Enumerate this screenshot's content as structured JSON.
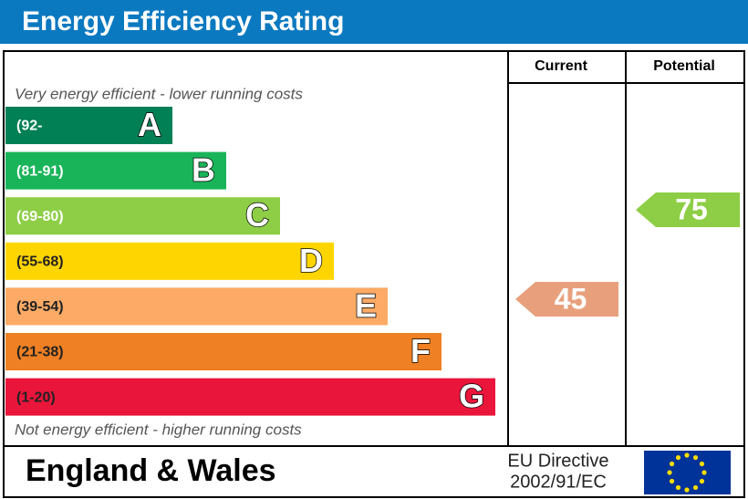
{
  "header": {
    "title": "Energy Efficiency Rating"
  },
  "columns": [
    "Current",
    "Potential"
  ],
  "top_note": "Very energy efficient - lower running costs",
  "bottom_note": "Not energy efficient - higher running costs",
  "bands": [
    {
      "range": "(92-",
      "letter": "A",
      "color": "#008054"
    },
    {
      "range": "(81-91)",
      "letter": "B",
      "color": "#19b459"
    },
    {
      "range": "(69-80)",
      "letter": "C",
      "color": "#8dce46"
    },
    {
      "range": "(55-68)",
      "letter": "D",
      "color": "#ffd500"
    },
    {
      "range": "(39-54)",
      "letter": "E",
      "color": "#fcaa65"
    },
    {
      "range": "(21-38)",
      "letter": "F",
      "color": "#ef8023"
    },
    {
      "range": "(1-20)",
      "letter": "G",
      "color": "#e9153b"
    }
  ],
  "current": {
    "value": 45,
    "color": "#e8a07c"
  },
  "potential": {
    "value": 75,
    "color": "#8dce46"
  },
  "footer": {
    "region": "England & Wales",
    "directive": [
      "EU Directive",
      "2002/91/EC"
    ]
  }
}
